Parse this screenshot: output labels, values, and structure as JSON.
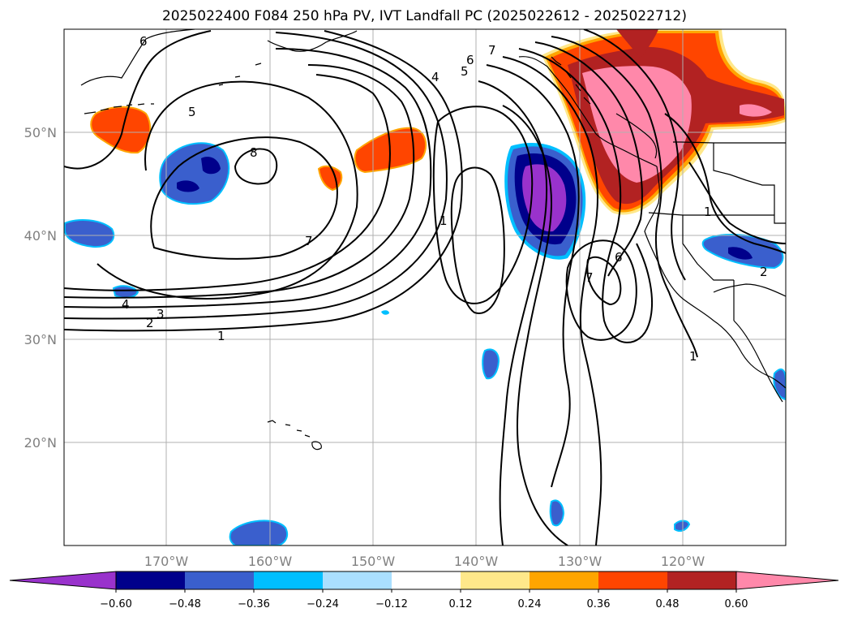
{
  "title": "2025022400 F084 250 hPa PV, IVT Landfall PC (2025022612 - 2025022712)",
  "map": {
    "lon_ticks": [
      "170°W",
      "160°W",
      "150°W",
      "140°W",
      "130°W",
      "120°W"
    ],
    "lat_ticks": [
      "50°N",
      "40°N",
      "30°N",
      "20°N"
    ],
    "contour_labels": [
      "6",
      "7",
      "6",
      "5",
      "4",
      "5",
      "8",
      "7",
      "1",
      "6",
      "7",
      "4",
      "3",
      "2",
      "1",
      "1",
      "1",
      "2"
    ]
  },
  "colorbar": {
    "ticks": [
      "−0.60",
      "−0.48",
      "−0.36",
      "−0.24",
      "−0.12",
      "0.12",
      "0.24",
      "0.36",
      "0.48",
      "0.60"
    ],
    "colors": [
      "#9932cc",
      "#00008b",
      "#3a5fcd",
      "#00bfff",
      "#aadfff",
      "#ffffff",
      "#ffe88a",
      "#ffa500",
      "#ff4500",
      "#b22222",
      "#ff88aa"
    ]
  },
  "colors": {
    "grid": "#b0b0b0",
    "coast": "#000000",
    "tick_text": "#808080"
  }
}
